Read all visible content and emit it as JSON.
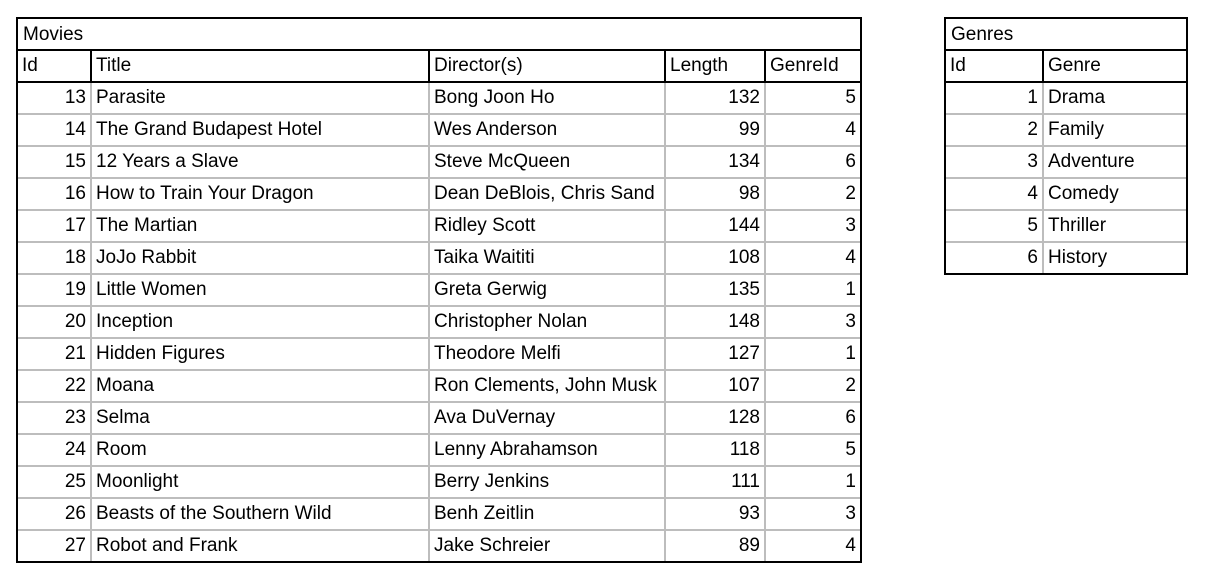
{
  "movies": {
    "title": "Movies",
    "headers": [
      "Id",
      "Title",
      "Director(s)",
      "Length",
      "GenreId"
    ],
    "rows": [
      [
        "13",
        "Parasite",
        "Bong Joon Ho",
        "132",
        "5"
      ],
      [
        "14",
        "The Grand Budapest Hotel",
        "Wes Anderson",
        "99",
        "4"
      ],
      [
        "15",
        "12 Years a Slave",
        "Steve McQueen",
        "134",
        "6"
      ],
      [
        "16",
        "How to Train Your Dragon",
        "Dean DeBlois, Chris Sand",
        "98",
        "2"
      ],
      [
        "17",
        "The Martian",
        "Ridley Scott",
        "144",
        "3"
      ],
      [
        "18",
        "JoJo Rabbit",
        "Taika Waititi",
        "108",
        "4"
      ],
      [
        "19",
        "Little Women",
        "Greta Gerwig",
        "135",
        "1"
      ],
      [
        "20",
        "Inception",
        "Christopher Nolan",
        "148",
        "3"
      ],
      [
        "21",
        "Hidden Figures",
        "Theodore Melfi",
        "127",
        "1"
      ],
      [
        "22",
        "Moana",
        "Ron Clements, John Musk",
        "107",
        "2"
      ],
      [
        "23",
        "Selma",
        "Ava DuVernay",
        "128",
        "6"
      ],
      [
        "24",
        "Room",
        "Lenny Abrahamson",
        "118",
        "5"
      ],
      [
        "25",
        "Moonlight",
        "Berry Jenkins",
        "111",
        "1"
      ],
      [
        "26",
        "Beasts of the Southern Wild",
        "Benh Zeitlin",
        "93",
        "3"
      ],
      [
        "27",
        "Robot and Frank",
        "Jake Schreier",
        "89",
        "4"
      ]
    ]
  },
  "genres": {
    "title": "Genres",
    "headers": [
      "Id",
      "Genre"
    ],
    "rows": [
      [
        "1",
        "Drama"
      ],
      [
        "2",
        "Family"
      ],
      [
        "3",
        "Adventure"
      ],
      [
        "4",
        "Comedy"
      ],
      [
        "5",
        "Thriller"
      ],
      [
        "6",
        "History"
      ]
    ]
  }
}
